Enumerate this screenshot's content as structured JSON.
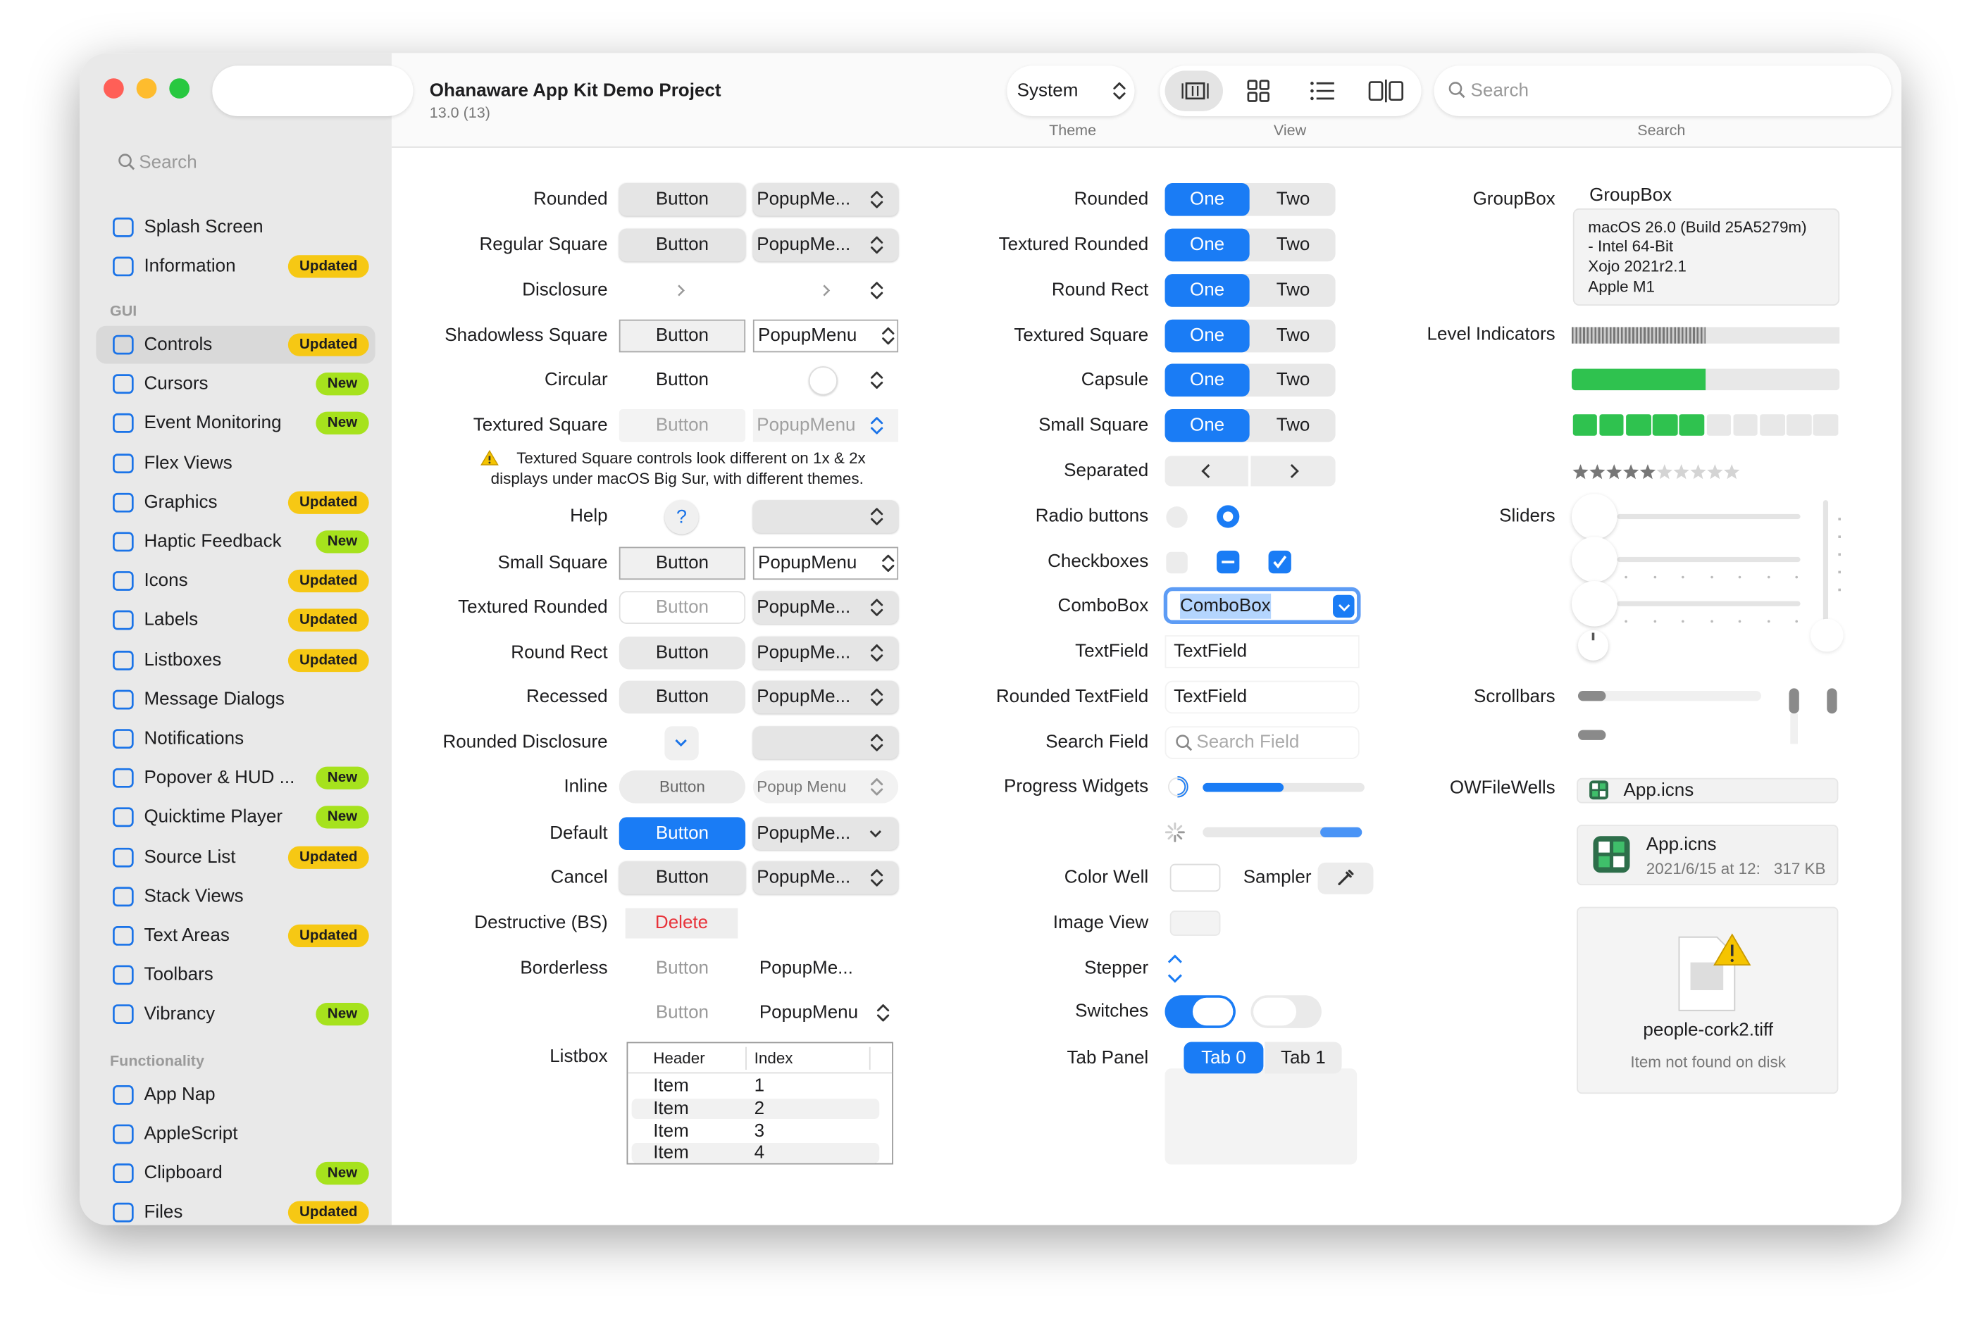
{
  "window": {
    "title": "Ohanaware App Kit Demo Project",
    "subtitle": "13.0 (13)"
  },
  "toolbar": {
    "theme": "System",
    "theme_label": "Theme",
    "view_label": "View",
    "search_placeholder": "Search",
    "search_label": "Search"
  },
  "sidebar": {
    "search": "Search",
    "groups": [
      {
        "items": [
          {
            "label": "Splash Screen"
          },
          {
            "label": "Information",
            "badge": "Updated"
          }
        ]
      },
      {
        "header": "GUI",
        "items": [
          {
            "label": "Controls",
            "badge": "Updated"
          },
          {
            "label": "Cursors",
            "badge": "New"
          },
          {
            "label": "Event Monitoring",
            "badge": "New"
          },
          {
            "label": "Flex Views"
          },
          {
            "label": "Graphics",
            "badge": "Updated"
          },
          {
            "label": "Haptic Feedback",
            "badge": "New"
          },
          {
            "label": "Icons",
            "badge": "Updated"
          },
          {
            "label": "Labels",
            "badge": "Updated"
          },
          {
            "label": "Listboxes",
            "badge": "Updated"
          },
          {
            "label": "Message Dialogs"
          },
          {
            "label": "Notifications"
          },
          {
            "label": "Popover & HUD ...",
            "badge": "New"
          },
          {
            "label": "Quicktime Player",
            "badge": "New"
          },
          {
            "label": "Source List",
            "badge": "Updated"
          },
          {
            "label": "Stack Views"
          },
          {
            "label": "Text Areas",
            "badge": "Updated"
          },
          {
            "label": "Toolbars"
          },
          {
            "label": "Vibrancy",
            "badge": "New"
          }
        ]
      },
      {
        "header": "Functionality",
        "items": [
          {
            "label": "App Nap"
          },
          {
            "label": "AppleScript"
          },
          {
            "label": "Clipboard",
            "badge": "New"
          },
          {
            "label": "Files",
            "badge": "Updated"
          }
        ]
      }
    ]
  },
  "column1": {
    "rows": [
      {
        "label": "Rounded",
        "button": "Button",
        "popup": "PopupMe..."
      },
      {
        "label": "Regular Square",
        "button": "Button",
        "popup": "PopupMe..."
      },
      {
        "label": "Disclosure"
      },
      {
        "label": "Shadowless Square",
        "button": "Button",
        "popup": "PopupMenu"
      },
      {
        "label": "Circular",
        "button": "Button"
      },
      {
        "label": "Textured Square",
        "button": "Button",
        "popup": "PopupMenu"
      },
      {
        "label": "Help",
        "button": "?"
      },
      {
        "label": "Small Square",
        "button": "Button",
        "popup": "PopupMenu"
      },
      {
        "label": "Textured Rounded",
        "button": "Button",
        "popup": "PopupMe..."
      },
      {
        "label": "Round Rect",
        "button": "Button",
        "popup": "PopupMe..."
      },
      {
        "label": "Recessed",
        "button": "Button",
        "popup": "PopupMe..."
      },
      {
        "label": "Rounded Disclosure"
      },
      {
        "label": "Inline",
        "button": "Button",
        "popup": "Popup Menu"
      },
      {
        "label": "Default",
        "button": "Button",
        "popup": "PopupMe..."
      },
      {
        "label": "Cancel",
        "button": "Button",
        "popup": "PopupMe..."
      },
      {
        "label": "Destructive (BS)",
        "button": "Delete"
      },
      {
        "label": "Borderless",
        "button": "Button",
        "popup": "PopupMe..."
      },
      {
        "button": "Button",
        "popup": "PopupMenu"
      }
    ],
    "note": "Textured Square controls look different on 1x & 2x displays under macOS Big Sur, with different themes.",
    "listbox": {
      "label": "Listbox",
      "headers": [
        "Header",
        "Index"
      ],
      "rows": [
        [
          "Item",
          "1"
        ],
        [
          "Item",
          "2"
        ],
        [
          "Item",
          "3"
        ],
        [
          "Item",
          "4"
        ]
      ]
    }
  },
  "column2": {
    "rows": [
      {
        "label": "Rounded",
        "segments": [
          "One",
          "Two"
        ]
      },
      {
        "label": "Textured Rounded",
        "segments": [
          "One",
          "Two"
        ]
      },
      {
        "label": "Round Rect",
        "segments": [
          "One",
          "Two"
        ]
      },
      {
        "label": "Textured Square",
        "segments": [
          "One",
          "Two"
        ]
      },
      {
        "label": "Capsule",
        "segments": [
          "One",
          "Two"
        ]
      },
      {
        "label": "Small Square",
        "segments": [
          "One",
          "Two"
        ]
      },
      {
        "label": "Separated"
      },
      {
        "label": "Radio buttons"
      },
      {
        "label": "Checkboxes"
      },
      {
        "label": "ComboBox",
        "value": "ComboBox"
      },
      {
        "label": "TextField",
        "value": "TextField"
      },
      {
        "label": "Rounded TextField",
        "value": "TextField"
      },
      {
        "label": "Search Field",
        "placeholder": "Search Field"
      },
      {
        "label": "Progress Widgets",
        "progress": 50
      },
      {
        "label": "Color Well",
        "sampler": "Sampler"
      },
      {
        "label": "Image View"
      },
      {
        "label": "Stepper"
      },
      {
        "label": "Switches"
      },
      {
        "label": "Tab Panel",
        "tabs": [
          "Tab 0",
          "Tab 1"
        ]
      }
    ]
  },
  "column3": {
    "groupbox": {
      "label": "GroupBox",
      "title": "GroupBox",
      "lines": [
        "macOS 26.0 (Build 25A5279m)",
        "- Intel 64-Bit",
        "Xojo 2021r2.1",
        "Apple M1"
      ]
    },
    "level_label": "Level Indicators",
    "levels": [
      5,
      5,
      5,
      5
    ],
    "level_max": 10,
    "sliders_label": "Sliders",
    "scrollbars_label": "Scrollbars",
    "filewells": {
      "label": "OWFileWells",
      "small": "App.icns",
      "medium": {
        "name": "App.icns",
        "date": "2021/6/15 at 12:",
        "size": "317 KB"
      },
      "large": {
        "name": "people-cork2.tiff",
        "status": "Item not found on disk"
      }
    }
  }
}
